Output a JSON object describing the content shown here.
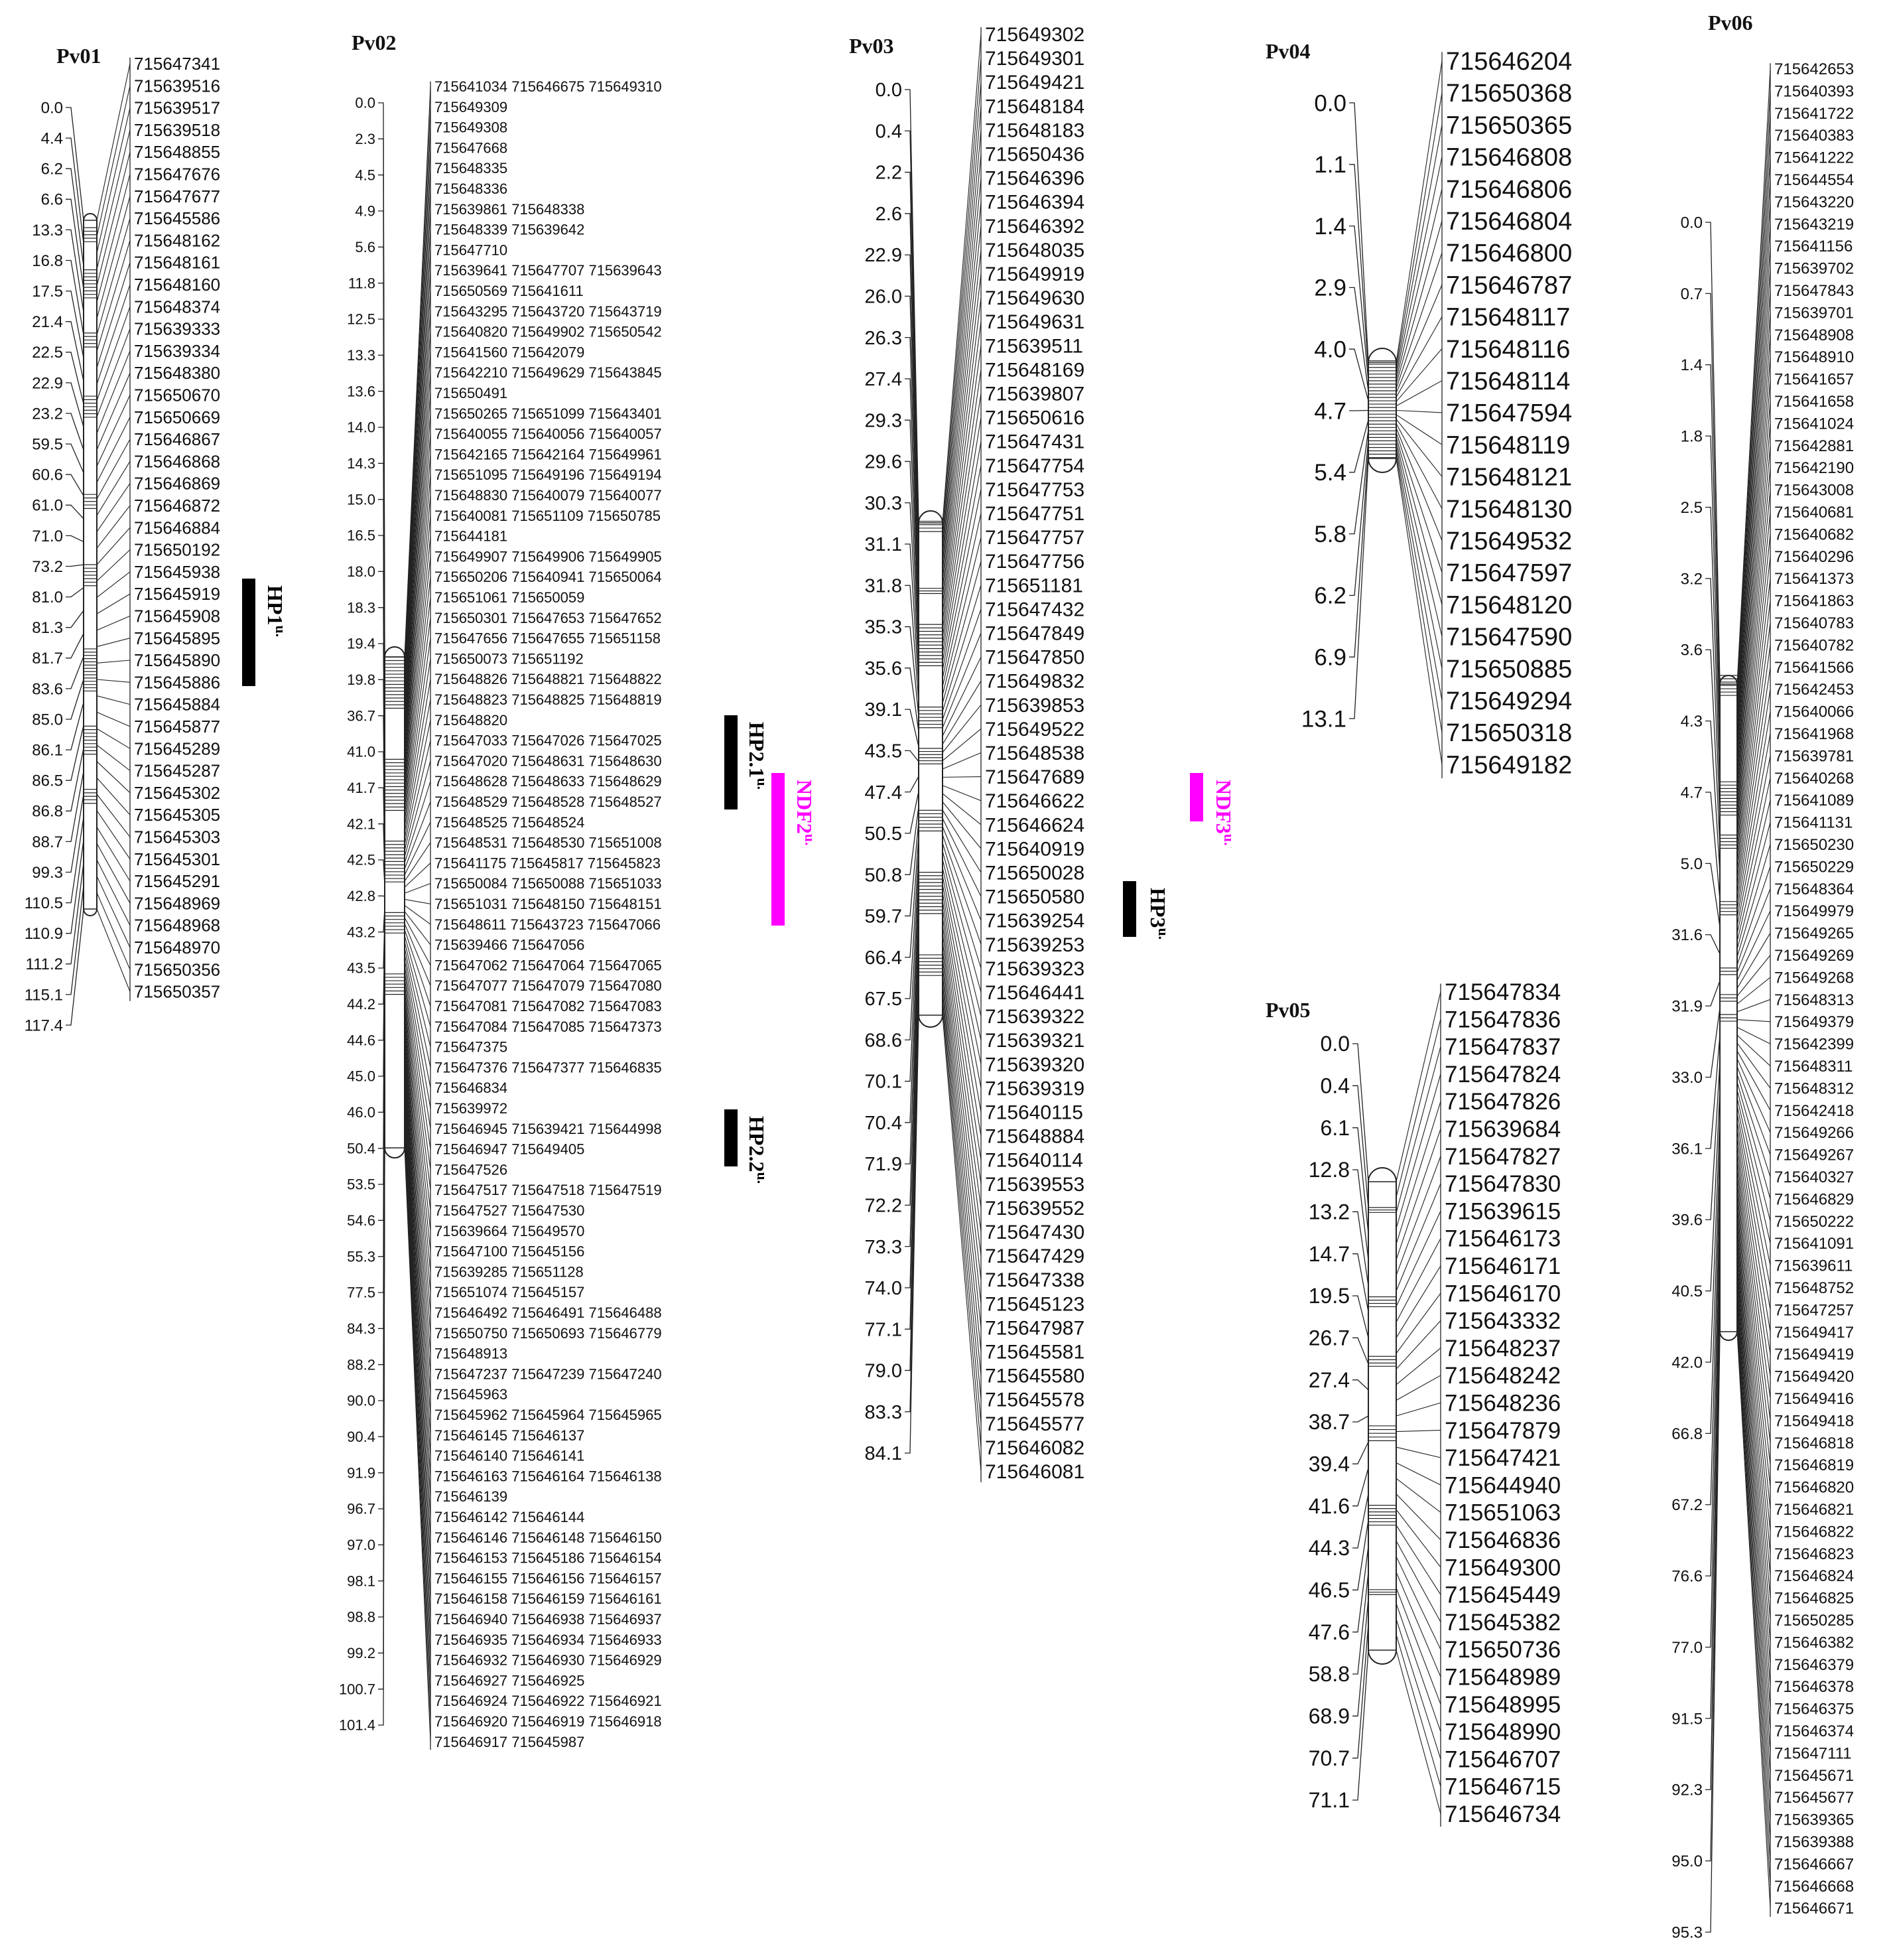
{
  "linkage_groups": [
    {
      "name": "Pv01",
      "positions": [
        "0.0",
        "4.4",
        "6.2",
        "6.6",
        "13.3",
        "16.8",
        "17.5",
        "21.4",
        "22.5",
        "22.9",
        "23.2",
        "59.5",
        "60.6",
        "61.0",
        "71.0",
        "73.2",
        "81.0",
        "81.3",
        "81.7",
        "83.6",
        "85.0",
        "86.1",
        "86.5",
        "86.8",
        "88.7",
        "99.3",
        "110.5",
        "110.9",
        "111.2",
        "115.1",
        "117.4"
      ],
      "markers": [
        "715647341",
        "715639516",
        "715639517",
        "715639518",
        "715648855",
        "715647676",
        "715647677",
        "715645586",
        "715648162",
        "715648161",
        "715648160",
        "715648374",
        "715639333",
        "715639334",
        "715648380",
        "715650670",
        "715650669",
        "715646867",
        "715646868",
        "715646869",
        "715646872",
        "715646884",
        "715650192",
        "715645938",
        "715645919",
        "715645908",
        "715645895",
        "715645890",
        "715645886",
        "715645884",
        "715645877",
        "715645289",
        "715645287",
        "715645302",
        "715645305",
        "715645303",
        "715645301",
        "715645291",
        "715648969",
        "715648968",
        "715648970",
        "715650356",
        "715650357"
      ]
    },
    {
      "name": "Pv02",
      "positions": [
        "0.0",
        "2.3",
        "4.5",
        "4.9",
        "5.6",
        "11.8",
        "12.5",
        "13.3",
        "13.6",
        "14.0",
        "14.3",
        "15.0",
        "16.5",
        "18.0",
        "18.3",
        "19.4",
        "19.8",
        "36.7",
        "41.0",
        "41.7",
        "42.1",
        "42.5",
        "42.8",
        "43.2",
        "43.5",
        "44.2",
        "44.6",
        "45.0",
        "46.0",
        "50.4",
        "53.5",
        "54.6",
        "55.3",
        "77.5",
        "84.3",
        "88.2",
        "90.0",
        "90.4",
        "91.9",
        "96.7",
        "97.0",
        "98.1",
        "98.8",
        "99.2",
        "100.7",
        "101.4"
      ],
      "markers": [
        "715641034 715646675 715649310",
        "715649309",
        "715649308",
        "715647668",
        "715648335",
        "715648336",
        "715639861 715648338",
        "715648339 715639642",
        "715647710",
        "715639641 715647707 715639643",
        "715650569 715641611",
        "715643295 715643720 715643719",
        "715640820 715649902 715650542",
        "715641560 715642079",
        "715642210 715649629 715643845",
        "715650491",
        "715650265 715651099 715643401",
        "715640055 715640056 715640057",
        "715642165 715642164 715649961",
        "715651095 715649196 715649194",
        "715648830 715640079 715640077",
        "715640081 715651109 715650785",
        "715644181",
        "715649907 715649906 715649905",
        "715650206 715640941 715650064",
        "715651061 715650059",
        "715650301 715647653 715647652",
        "715647656 715647655 715651158",
        "715650073 715651192",
        "715648826 715648821 715648822",
        "715648823 715648825 715648819",
        "715648820",
        "715647033 715647026 715647025",
        "715647020 715648631 715648630",
        "715648628 715648633 715648629",
        "715648529 715648528 715648527",
        "715648525 715648524",
        "715648531 715648530 715651008",
        "715641175 715645817 715645823",
        "715650084 715650088 715651033",
        "715651031 715648150 715648151",
        "715648611 715643723 715647066",
        "715639466 715647056",
        "715647062 715647064 715647065",
        "715647077 715647079 715647080",
        "715647081 715647082 715647083",
        "715647084 715647085 715647373",
        "715647375",
        "715647376 715647377 715646835",
        "715646834",
        "715639972",
        "715646945 715639421 715644998",
        "715646947 715649405",
        "715647526",
        "715647517 715647518 715647519",
        "715647527 715647530",
        "715639664 715649570",
        "715647100 715645156",
        "715639285 715651128",
        "715651074 715645157",
        "715646492 715646491 715646488",
        "715650750 715650693 715646779",
        "715648913",
        "715647237 715647239 715647240",
        "715645963",
        "715645962 715645964 715645965",
        "715646145 715646137",
        "715646140 715646141",
        "715646163 715646164 715646138",
        "715646139",
        "715646142 715646144",
        "715646146 715646148 715646150",
        "715646153 715645186 715646154",
        "715646155 715646156 715646157",
        "715646158 715646159 715646161",
        "715646940 715646938 715646937",
        "715646935 715646934 715646933",
        "715646932 715646930 715646929",
        "715646927 715646925",
        "715646924 715646922 715646921",
        "715646920 715646919 715646918",
        "715646917 715645987"
      ]
    },
    {
      "name": "Pv03",
      "positions": [
        "0.0",
        "0.4",
        "2.2",
        "2.6",
        "22.9",
        "26.0",
        "26.3",
        "27.4",
        "29.3",
        "29.6",
        "30.3",
        "31.1",
        "31.8",
        "35.3",
        "35.6",
        "39.1",
        "43.5",
        "47.4",
        "50.5",
        "50.8",
        "59.7",
        "66.4",
        "67.5",
        "68.6",
        "70.1",
        "70.4",
        "71.9",
        "72.2",
        "73.3",
        "74.0",
        "77.1",
        "79.0",
        "83.3",
        "84.1"
      ],
      "markers": [
        "715649302",
        "715649301",
        "715649421",
        "715648184",
        "715648183",
        "715650436",
        "715646396",
        "715646394",
        "715646392",
        "715648035",
        "715649919",
        "715649630",
        "715649631",
        "715639511",
        "715648169",
        "715639807",
        "715650616",
        "715647431",
        "715647754",
        "715647753",
        "715647751",
        "715647757",
        "715647756",
        "715651181",
        "715647432",
        "715647849",
        "715647850",
        "715649832",
        "715639853",
        "715649522",
        "715648538",
        "715647689",
        "715646622",
        "715646624",
        "715640919",
        "715650028",
        "715650580",
        "715639254",
        "715639253",
        "715639323",
        "715646441",
        "715639322",
        "715639321",
        "715639320",
        "715639319",
        "715640115",
        "715648884",
        "715640114",
        "715639553",
        "715639552",
        "715647430",
        "715647429",
        "715647338",
        "715645123",
        "715647987",
        "715645581",
        "715645580",
        "715645578",
        "715645577",
        "715646082",
        "715646081"
      ]
    },
    {
      "name": "Pv04",
      "positions": [
        "0.0",
        "1.1",
        "1.4",
        "2.9",
        "4.0",
        "4.7",
        "5.4",
        "5.8",
        "6.2",
        "6.9",
        "13.1"
      ],
      "markers": [
        "715646204",
        "715650368",
        "715650365",
        "715646808",
        "715646806",
        "715646804",
        "715646800",
        "715646787",
        "715648117",
        "715648116",
        "715648114",
        "715647594",
        "715648119",
        "715648121",
        "715648130",
        "715649532",
        "715647597",
        "715648120",
        "715647590",
        "715650885",
        "715649294",
        "715650318",
        "715649182"
      ]
    },
    {
      "name": "Pv05",
      "positions": [
        "0.0",
        "0.4",
        "6.1",
        "12.8",
        "13.2",
        "14.7",
        "19.5",
        "26.7",
        "27.4",
        "38.7",
        "39.4",
        "41.6",
        "44.3",
        "46.5",
        "47.6",
        "58.8",
        "68.9",
        "70.7",
        "71.1"
      ],
      "markers": [
        "715647834",
        "715647836",
        "715647837",
        "715647824",
        "715647826",
        "715639684",
        "715647827",
        "715647830",
        "715639615",
        "715646173",
        "715646171",
        "715646170",
        "715643332",
        "715648237",
        "715648242",
        "715648236",
        "715647879",
        "715647421",
        "715644940",
        "715651063",
        "715646836",
        "715649300",
        "715645449",
        "715645382",
        "715650736",
        "715648989",
        "715648995",
        "715648990",
        "715646707",
        "715646715",
        "715646734"
      ]
    },
    {
      "name": "Pv06",
      "positions": [
        "0.0",
        "0.7",
        "1.4",
        "1.8",
        "2.5",
        "3.2",
        "3.6",
        "4.3",
        "4.7",
        "5.0",
        "31.6",
        "31.9",
        "33.0",
        "36.1",
        "39.6",
        "40.5",
        "42.0",
        "66.8",
        "67.2",
        "76.6",
        "77.0",
        "91.5",
        "92.3",
        "95.0",
        "95.3"
      ],
      "markers": [
        "715642653",
        "715640393",
        "715641722",
        "715640383",
        "715641222",
        "715644554",
        "715643220",
        "715643219",
        "715641156",
        "715639702",
        "715647843",
        "715639701",
        "715648908",
        "715648910",
        "715641657",
        "715641658",
        "715641024",
        "715642881",
        "715642190",
        "715643008",
        "715640681",
        "715640682",
        "715640296",
        "715641373",
        "715641863",
        "715640783",
        "715640782",
        "715641566",
        "715642453",
        "715640066",
        "715641968",
        "715639781",
        "715640268",
        "715641089",
        "715641131",
        "715650230",
        "715650229",
        "715648364",
        "715649979",
        "715649265",
        "715649269",
        "715649268",
        "715648313",
        "715649379",
        "715642399",
        "715648311",
        "715648312",
        "715642418",
        "715649266",
        "715649267",
        "715640327",
        "715646829",
        "715650222",
        "715641091",
        "715639611",
        "715648752",
        "715647257",
        "715649417",
        "715649419",
        "715649420",
        "715649416",
        "715649418",
        "715646818",
        "715646819",
        "715646820",
        "715646821",
        "715646822",
        "715646823",
        "715646824",
        "715646825",
        "715650285",
        "715646382",
        "715646379",
        "715646378",
        "715646375",
        "715646374",
        "715647111",
        "715645671",
        "715645677",
        "715639365",
        "715639388",
        "715646667",
        "715646668",
        "715646671"
      ]
    }
  ],
  "qtls": [
    {
      "lg": "Pv01",
      "label": "HP1",
      "sup": "u.",
      "color": "#000000"
    },
    {
      "lg": "Pv02",
      "label": "HP2.1",
      "sup": "u.",
      "color": "#000000"
    },
    {
      "lg": "Pv02",
      "label": "NDF2",
      "sup": "u.",
      "color": "#ff00ff"
    },
    {
      "lg": "Pv02",
      "label": "HP2.2",
      "sup": "u.",
      "color": "#000000"
    },
    {
      "lg": "Pv03",
      "label": "NDF3",
      "sup": "u.",
      "color": "#ff00ff"
    },
    {
      "lg": "Pv03",
      "label": "HP3",
      "sup": "u.",
      "color": "#000000"
    }
  ]
}
